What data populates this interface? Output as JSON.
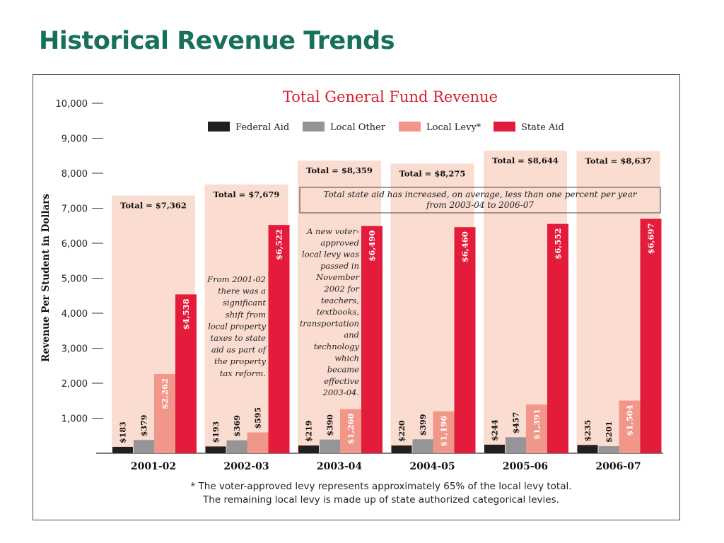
{
  "slide": {
    "title": "Historical Revenue Trends"
  },
  "chart_data": {
    "type": "bar",
    "title": "Total General Fund Revenue",
    "ylabel": "Revenue Per Student in Dollars",
    "xlabel": "",
    "ylim": [
      0,
      10000
    ],
    "yticks": [
      {
        "value": 1000,
        "label": "1,000"
      },
      {
        "value": 2000,
        "label": "2,000"
      },
      {
        "value": 3000,
        "label": "3,000"
      },
      {
        "value": 4000,
        "label": "4,000"
      },
      {
        "value": 5000,
        "label": "5,000"
      },
      {
        "value": 6000,
        "label": "6,000"
      },
      {
        "value": 7000,
        "label": "7,000"
      },
      {
        "value": 8000,
        "label": "8,000"
      },
      {
        "value": 9000,
        "label": "9,000"
      },
      {
        "value": 10000,
        "label": "10,000"
      }
    ],
    "grid": false,
    "legend_position": "top",
    "categories": [
      "2001-02",
      "2002-03",
      "2003-04",
      "2004-05",
      "2005-06",
      "2006-07"
    ],
    "totals": [
      7362,
      7679,
      8359,
      8275,
      8644,
      8637
    ],
    "total_labels": [
      "Total = $7,362",
      "Total = $7,679",
      "Total = $8,359",
      "Total = $8,275",
      "Total = $8,644",
      "Total = $8,637"
    ],
    "series": [
      {
        "name": "Federal Aid",
        "color": "#231f20",
        "values": [
          183,
          193,
          219,
          220,
          244,
          235
        ],
        "labels": [
          "$183",
          "$193",
          "$219",
          "$220",
          "$244",
          "$235"
        ]
      },
      {
        "name": "Local Other",
        "color": "#959597",
        "values": [
          379,
          369,
          390,
          399,
          457,
          201
        ],
        "labels": [
          "$379",
          "$369",
          "$390",
          "$399",
          "$457",
          "$201"
        ]
      },
      {
        "name": "Local Levy*",
        "color": "#f0978a",
        "values": [
          2262,
          595,
          1260,
          1196,
          1391,
          1504
        ],
        "labels": [
          "$2,262",
          "$595",
          "$1,260",
          "$1,196",
          "$1,391",
          "$1,504"
        ]
      },
      {
        "name": "State Aid",
        "color": "#e41c3c",
        "values": [
          4538,
          6522,
          6490,
          6460,
          6552,
          6697
        ],
        "labels": [
          "$4,538",
          "$6,522",
          "$6,490",
          "$6,460",
          "$6,552",
          "$6,697"
        ]
      }
    ],
    "annotations": {
      "state_aid_box": [
        "Total state aid has increased, on average, less than one percent per year",
        "from 2003-04 to 2006-07"
      ],
      "shift_note": [
        "From 2001-02",
        "there was a",
        "significant",
        "shift from",
        "local property",
        "taxes to state",
        "aid as part of",
        "the property",
        "tax reform."
      ],
      "levy_note": [
        "A new voter-",
        "approved",
        "local levy was",
        "passed in",
        "November",
        "2002 for",
        "teachers,",
        "textbooks,",
        "transportation",
        "and",
        "technology",
        "which",
        "became",
        "effective",
        "2003-04."
      ]
    },
    "footnote": [
      "* The voter-approved levy represents approximately 65% of the local levy total.",
      "The remaining local levy is made up of state authorized categorical levies."
    ],
    "colors": {
      "total_bg": "#fbdcd0",
      "axis": "#333333",
      "title": "#d71f2e"
    }
  }
}
